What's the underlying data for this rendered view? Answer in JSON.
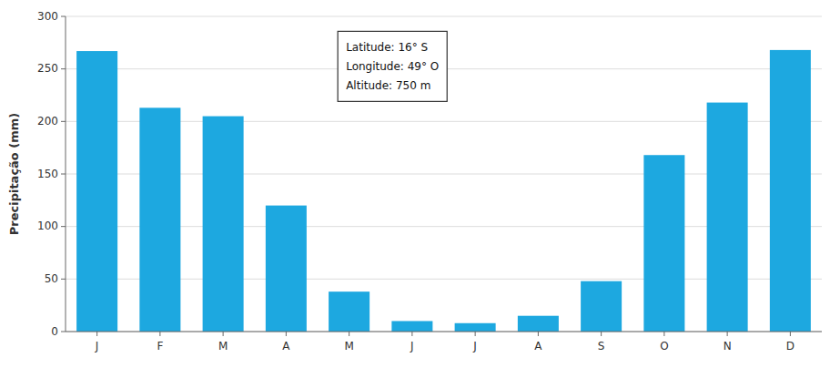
{
  "chart_data": {
    "type": "bar",
    "categories": [
      "J",
      "F",
      "M",
      "A",
      "M",
      "J",
      "J",
      "A",
      "S",
      "O",
      "N",
      "D"
    ],
    "values": [
      267,
      213,
      205,
      120,
      38,
      10,
      8,
      15,
      48,
      168,
      218,
      268
    ],
    "color": "#1da8e0",
    "y_label": "Precipitação (mm)",
    "ylim": [
      0,
      300
    ],
    "yticks": [
      0,
      50,
      100,
      150,
      200,
      250,
      300
    ],
    "grid": true,
    "annotations": [
      "Latitude: 16° S",
      "Longitude: 49° O",
      "Altitude: 750 m"
    ]
  }
}
